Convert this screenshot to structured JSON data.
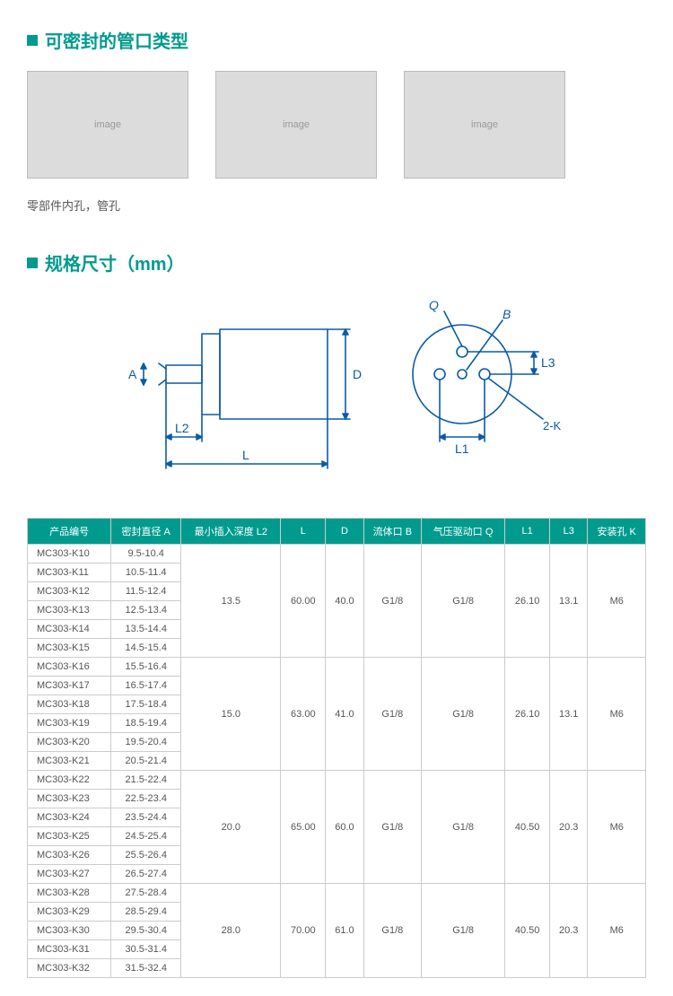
{
  "section1": {
    "title": "可密封的管口类型",
    "caption": "零部件内孔，管孔"
  },
  "section2": {
    "title": "规格尺寸（mm）"
  },
  "diagram": {
    "labels": {
      "A": "A",
      "L2": "L2",
      "L": "L",
      "D": "D",
      "Q": "Q",
      "B": "B",
      "L3": "L3",
      "L1": "L1",
      "K": "2-K"
    },
    "stroke": "#0b5ba5",
    "stroke_width": 1.6
  },
  "table": {
    "header_bg": "#009B8E",
    "columns": [
      "产品编号",
      "密封直径 A",
      "最小插入深度 L2",
      "L",
      "D",
      "流体口 B",
      "气压驱动口 Q",
      "L1",
      "L3",
      "安装孔 K"
    ],
    "groups": [
      {
        "rows": [
          [
            "MC303-K10",
            "9.5-10.4"
          ],
          [
            "MC303-K11",
            "10.5-11.4"
          ],
          [
            "MC303-K12",
            "11.5-12.4"
          ],
          [
            "MC303-K13",
            "12.5-13.4"
          ],
          [
            "MC303-K14",
            "13.5-14.4"
          ],
          [
            "MC303-K15",
            "14.5-15.4"
          ]
        ],
        "shared": [
          "13.5",
          "60.00",
          "40.0",
          "G1/8",
          "G1/8",
          "26.10",
          "13.1",
          "M6"
        ]
      },
      {
        "rows": [
          [
            "MC303-K16",
            "15.5-16.4"
          ],
          [
            "MC303-K17",
            "16.5-17.4"
          ],
          [
            "MC303-K18",
            "17.5-18.4"
          ],
          [
            "MC303-K19",
            "18.5-19.4"
          ],
          [
            "MC303-K20",
            "19.5-20.4"
          ],
          [
            "MC303-K21",
            "20.5-21.4"
          ]
        ],
        "shared": [
          "15.0",
          "63.00",
          "41.0",
          "G1/8",
          "G1/8",
          "26.10",
          "13.1",
          "M6"
        ]
      },
      {
        "rows": [
          [
            "MC303-K22",
            "21.5-22.4"
          ],
          [
            "MC303-K23",
            "22.5-23.4"
          ],
          [
            "MC303-K24",
            "23.5-24.4"
          ],
          [
            "MC303-K25",
            "24.5-25.4"
          ],
          [
            "MC303-K26",
            "25.5-26.4"
          ],
          [
            "MC303-K27",
            "26.5-27.4"
          ]
        ],
        "shared": [
          "20.0",
          "65.00",
          "60.0",
          "G1/8",
          "G1/8",
          "40.50",
          "20.3",
          "M6"
        ]
      },
      {
        "rows": [
          [
            "MC303-K28",
            "27.5-28.4"
          ],
          [
            "MC303-K29",
            "28.5-29.4"
          ],
          [
            "MC303-K30",
            "29.5-30.4"
          ],
          [
            "MC303-K31",
            "30.5-31.4"
          ],
          [
            "MC303-K32",
            "31.5-32.4"
          ]
        ],
        "shared": [
          "28.0",
          "70.00",
          "61.0",
          "G1/8",
          "G1/8",
          "40.50",
          "20.3",
          "M6"
        ]
      }
    ]
  }
}
